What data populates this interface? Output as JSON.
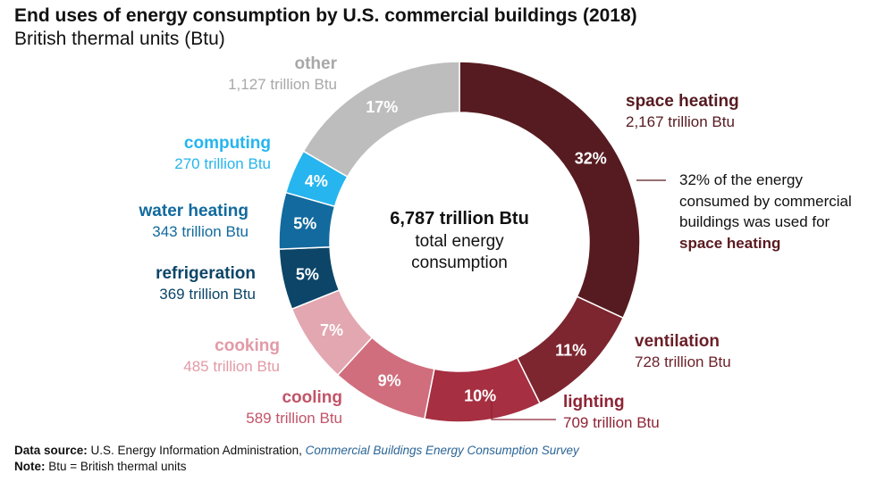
{
  "title": "End uses of energy consumption by U.S. commercial buildings (2018)",
  "subtitle": "British thermal units (Btu)",
  "chart_data": {
    "type": "pie",
    "variant": "donut",
    "title": "End uses of energy consumption by U.S. commercial buildings (2018)",
    "unit": "trillion Btu",
    "center_label": {
      "total": "6,787 trillion Btu",
      "line1": "total energy",
      "line2": "consumption"
    },
    "slices": [
      {
        "name": "space heating",
        "value": 2167,
        "value_label": "2,167 trillion Btu",
        "percent_label": "32%",
        "color": "#561b20"
      },
      {
        "name": "ventilation",
        "value": 728,
        "value_label": "728 trillion Btu",
        "percent_label": "11%",
        "color": "#7d2630"
      },
      {
        "name": "lighting",
        "value": 709,
        "value_label": "709 trillion Btu",
        "percent_label": "10%",
        "color": "#a62f41"
      },
      {
        "name": "cooling",
        "value": 589,
        "value_label": "589 trillion Btu",
        "percent_label": "9%",
        "color": "#d06e7d"
      },
      {
        "name": "cooking",
        "value": 485,
        "value_label": "485 trillion Btu",
        "percent_label": "7%",
        "color": "#e2a7b0"
      },
      {
        "name": "refrigeration",
        "value": 369,
        "value_label": "369 trillion Btu",
        "percent_label": "5%",
        "color": "#0c4568"
      },
      {
        "name": "water heating",
        "value": 343,
        "value_label": "343 trillion Btu",
        "percent_label": "5%",
        "color": "#126a9e"
      },
      {
        "name": "computing",
        "value": 270,
        "value_label": "270 trillion Btu",
        "percent_label": "4%",
        "color": "#26b5ee"
      },
      {
        "name": "other",
        "value": 1127,
        "value_label": "1,127 trillion Btu",
        "percent_label": "17%",
        "color": "#bdbdbd"
      }
    ]
  },
  "annotation": {
    "text": "32% of the energy consumed by commercial buildings was used for",
    "highlight": "space heating"
  },
  "colors": {
    "name_label_colors": {
      "space heating": "#561b20",
      "ventilation": "#6b1f27",
      "lighting": "#8e2435",
      "cooling": "#c25468",
      "cooking": "#e29aa6",
      "refrigeration": "#0c4568",
      "water heating": "#126a9e",
      "computing": "#26b5ee",
      "other": "#a8a8a8"
    }
  },
  "footer": {
    "source_label": "Data source:",
    "source_text": "U.S. Energy Information Administration,",
    "source_link": "Commercial Buildings Energy Consumption Survey",
    "note_label": "Note:",
    "note_text": "Btu = British thermal units"
  }
}
